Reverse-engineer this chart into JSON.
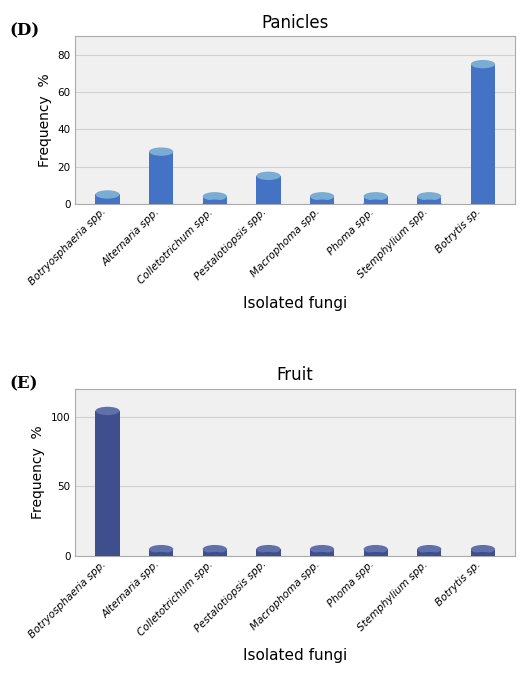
{
  "panel_D": {
    "title": "Panicles",
    "label": "(D)",
    "categories": [
      "Botryosphaeria spp.",
      "Alternaria spp.",
      "Colletotrichum spp.",
      "Pestalotiopsis spp.",
      "Macrophoma spp.",
      "Phoma spp.",
      "Stemphylium spp.",
      "Botrytis sp."
    ],
    "values": [
      5,
      28,
      4,
      15,
      4,
      4,
      4,
      75
    ],
    "bar_color": "#4472C4",
    "bar_top_color": "#7BADD4",
    "ylim": [
      0,
      90
    ],
    "yticks": [
      0,
      20,
      40,
      60,
      80
    ],
    "ylabel": "Frequency  %",
    "xlabel": "Isolated fungi"
  },
  "panel_E": {
    "title": "Fruit",
    "label": "(E)",
    "categories": [
      "Botryosphaeria spp.",
      "Alternaria spp.",
      "Colletotrichum spp.",
      "Pestalotiopsis spp.",
      "Macrophoma spp.",
      "Phoma spp.",
      "Stemphylium spp.",
      "Botrytis sp."
    ],
    "values": [
      104,
      5,
      5,
      5,
      5,
      5,
      5,
      5
    ],
    "bar_color": "#3F4E8C",
    "bar_top_color": "#6070AA",
    "ylim": [
      0,
      120
    ],
    "yticks": [
      0,
      50,
      100
    ],
    "ylabel": "Frequency  %",
    "xlabel": "Isolated fungi"
  },
  "background_color": "#ffffff",
  "plot_bg_color": "#f0f0f0",
  "grid_color": "#d0d0d0",
  "bar_width": 0.45,
  "title_fontsize": 12,
  "label_fontsize": 12,
  "tick_fontsize": 7.5,
  "axis_label_fontsize": 10
}
